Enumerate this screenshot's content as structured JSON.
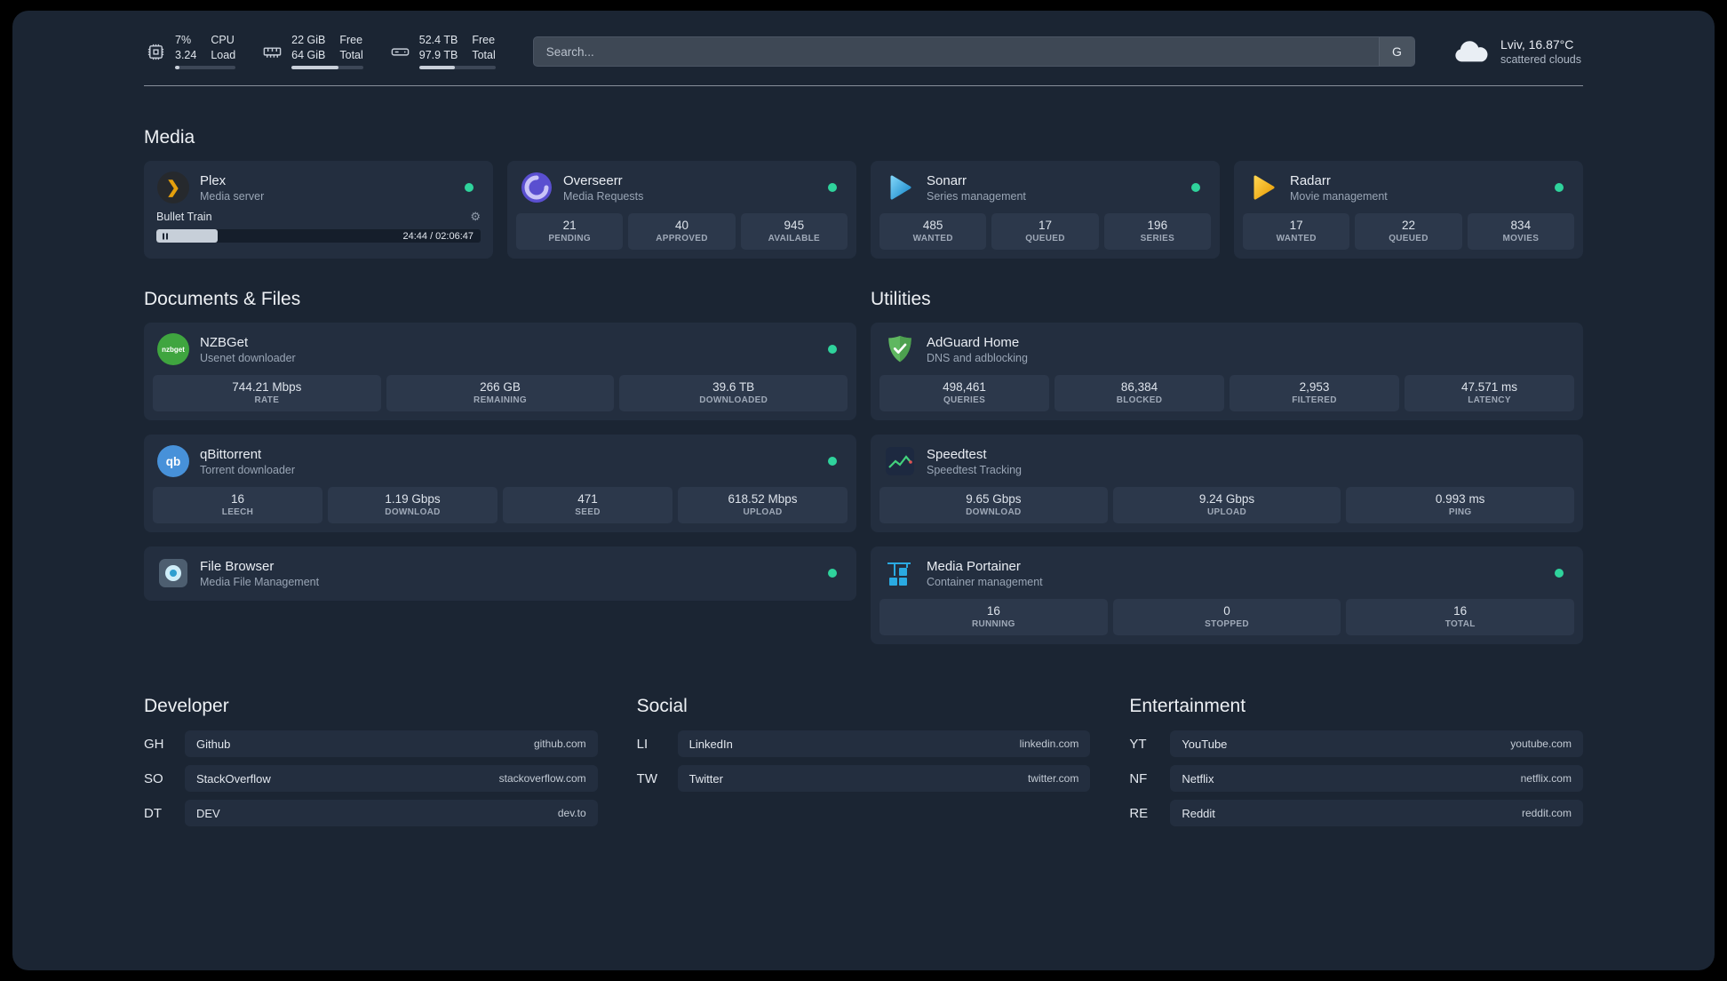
{
  "theme": {
    "page_bg": "#000000",
    "app_bg": "#1b2533",
    "card_bg": "#232e3f",
    "tile_bg": "#2c384b",
    "status_green": "#2fd39c"
  },
  "topbar": {
    "resources": [
      {
        "icon": "cpu-icon",
        "values": [
          "7%",
          "3.24"
        ],
        "labels": [
          "CPU",
          "Load"
        ],
        "percent": 7
      },
      {
        "icon": "memory-icon",
        "values": [
          "22 GiB",
          "64 GiB"
        ],
        "labels": [
          "Free",
          "Total"
        ],
        "percent": 66
      },
      {
        "icon": "disk-icon",
        "values": [
          "52.4 TB",
          "97.9 TB"
        ],
        "labels": [
          "Free",
          "Total"
        ],
        "percent": 47
      }
    ],
    "search": {
      "placeholder": "Search...",
      "button_label": "G"
    },
    "weather": {
      "location": "Lviv, 16.87°C",
      "condition": "scattered clouds"
    }
  },
  "media": {
    "heading": "Media",
    "plex": {
      "title": "Plex",
      "subtitle": "Media server",
      "now_playing": "Bullet Train",
      "time": "24:44 / 02:06:47",
      "progress_percent": 19
    },
    "overseerr": {
      "title": "Overseerr",
      "subtitle": "Media Requests",
      "stats": [
        {
          "value": "21",
          "label": "PENDING"
        },
        {
          "value": "40",
          "label": "APPROVED"
        },
        {
          "value": "945",
          "label": "AVAILABLE"
        }
      ]
    },
    "sonarr": {
      "title": "Sonarr",
      "subtitle": "Series management",
      "stats": [
        {
          "value": "485",
          "label": "WANTED"
        },
        {
          "value": "17",
          "label": "QUEUED"
        },
        {
          "value": "196",
          "label": "SERIES"
        }
      ]
    },
    "radarr": {
      "title": "Radarr",
      "subtitle": "Movie management",
      "stats": [
        {
          "value": "17",
          "label": "WANTED"
        },
        {
          "value": "22",
          "label": "QUEUED"
        },
        {
          "value": "834",
          "label": "MOVIES"
        }
      ]
    }
  },
  "documents": {
    "heading": "Documents & Files",
    "nzbget": {
      "title": "NZBGet",
      "subtitle": "Usenet downloader",
      "icon_text": "nzbget",
      "stats": [
        {
          "value": "744.21 Mbps",
          "label": "RATE"
        },
        {
          "value": "266 GB",
          "label": "REMAINING"
        },
        {
          "value": "39.6 TB",
          "label": "DOWNLOADED"
        }
      ]
    },
    "qbittorrent": {
      "title": "qBittorrent",
      "subtitle": "Torrent downloader",
      "icon_text": "qb",
      "stats": [
        {
          "value": "16",
          "label": "LEECH"
        },
        {
          "value": "1.19 Gbps",
          "label": "DOWNLOAD"
        },
        {
          "value": "471",
          "label": "SEED"
        },
        {
          "value": "618.52 Mbps",
          "label": "UPLOAD"
        }
      ]
    },
    "filebrowser": {
      "title": "File Browser",
      "subtitle": "Media File Management"
    }
  },
  "utilities": {
    "heading": "Utilities",
    "adguard": {
      "title": "AdGuard Home",
      "subtitle": "DNS and adblocking",
      "stats": [
        {
          "value": "498,461",
          "label": "QUERIES"
        },
        {
          "value": "86,384",
          "label": "BLOCKED"
        },
        {
          "value": "2,953",
          "label": "FILTERED"
        },
        {
          "value": "47.571 ms",
          "label": "LATENCY"
        }
      ]
    },
    "speedtest": {
      "title": "Speedtest",
      "subtitle": "Speedtest Tracking",
      "stats": [
        {
          "value": "9.65 Gbps",
          "label": "DOWNLOAD"
        },
        {
          "value": "9.24 Gbps",
          "label": "UPLOAD"
        },
        {
          "value": "0.993 ms",
          "label": "PING"
        }
      ]
    },
    "portainer": {
      "title": "Media Portainer",
      "subtitle": "Container management",
      "stats": [
        {
          "value": "16",
          "label": "RUNNING"
        },
        {
          "value": "0",
          "label": "STOPPED"
        },
        {
          "value": "16",
          "label": "TOTAL"
        }
      ]
    }
  },
  "bookmarks": {
    "developer": {
      "heading": "Developer",
      "items": [
        {
          "abbr": "GH",
          "name": "Github",
          "domain": "github.com"
        },
        {
          "abbr": "SO",
          "name": "StackOverflow",
          "domain": "stackoverflow.com"
        },
        {
          "abbr": "DT",
          "name": "DEV",
          "domain": "dev.to"
        }
      ]
    },
    "social": {
      "heading": "Social",
      "items": [
        {
          "abbr": "LI",
          "name": "LinkedIn",
          "domain": "linkedin.com"
        },
        {
          "abbr": "TW",
          "name": "Twitter",
          "domain": "twitter.com"
        }
      ]
    },
    "entertainment": {
      "heading": "Entertainment",
      "items": [
        {
          "abbr": "YT",
          "name": "YouTube",
          "domain": "youtube.com"
        },
        {
          "abbr": "NF",
          "name": "Netflix",
          "domain": "netflix.com"
        },
        {
          "abbr": "RE",
          "name": "Reddit",
          "domain": "reddit.com"
        }
      ]
    }
  }
}
